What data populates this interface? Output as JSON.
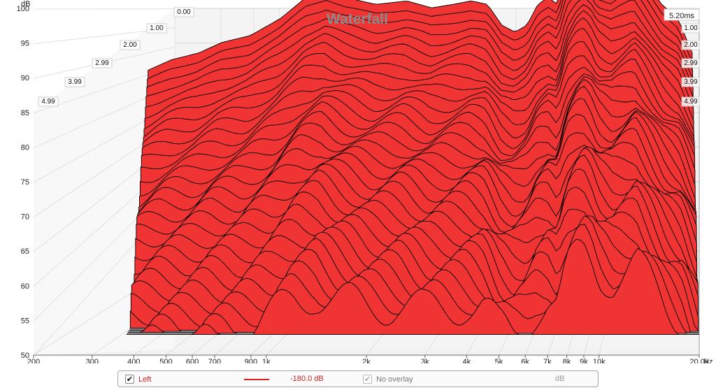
{
  "chart_data": {
    "type": "area",
    "title": "Waterfall",
    "ylabel": "dB",
    "xunit": "Hz",
    "ylim": [
      50,
      100
    ],
    "y_ticks": [
      50,
      55,
      60,
      65,
      70,
      75,
      80,
      85,
      90,
      95,
      100
    ],
    "x_ticks": [
      {
        "value": 200,
        "label": "200"
      },
      {
        "value": 300,
        "label": "300"
      },
      {
        "value": 400,
        "label": "400"
      },
      {
        "value": 500,
        "label": "500"
      },
      {
        "value": 600,
        "label": "600"
      },
      {
        "value": 700,
        "label": "700"
      },
      {
        "value": 900,
        "label": "900"
      },
      {
        "value": 1000,
        "label": "1k"
      },
      {
        "value": 2000,
        "label": "2k"
      },
      {
        "value": 3000,
        "label": "3k"
      },
      {
        "value": 4000,
        "label": "4k"
      },
      {
        "value": 5000,
        "label": "5k"
      },
      {
        "value": 6000,
        "label": "6k"
      },
      {
        "value": 7000,
        "label": "7k"
      },
      {
        "value": 8000,
        "label": "8k"
      },
      {
        "value": 9000,
        "label": "9k"
      },
      {
        "value": 10000,
        "label": "10k"
      },
      {
        "value": 20000,
        "label": "20.0k"
      }
    ],
    "xlim": [
      200,
      20000
    ],
    "time_axis": {
      "unit": "ms",
      "max": 5.2,
      "max_label": "5.20ms",
      "left_labels": [
        "0.00",
        "1.00",
        "2.00",
        "2.99",
        "3.99",
        "4.99"
      ],
      "right_labels": [
        "1.00",
        "2.00",
        "2.99",
        "3.99",
        "4.99"
      ]
    },
    "series": [
      {
        "name": "Left",
        "color": "#f03434",
        "outline": "#000000",
        "front_slice_dB": [
          [
            380,
            81.5
          ],
          [
            450,
            83
          ],
          [
            550,
            84
          ],
          [
            650,
            85.5
          ],
          [
            800,
            86.5
          ],
          [
            1000,
            89
          ],
          [
            1200,
            92
          ],
          [
            1400,
            93
          ],
          [
            1600,
            92
          ],
          [
            2000,
            91
          ],
          [
            2500,
            91.5
          ],
          [
            3000,
            90.5
          ],
          [
            3500,
            91
          ],
          [
            4000,
            91.5
          ],
          [
            4500,
            91
          ],
          [
            5000,
            88
          ],
          [
            5500,
            87
          ],
          [
            6000,
            88
          ],
          [
            6500,
            91
          ],
          [
            7000,
            92
          ],
          [
            7500,
            91
          ],
          [
            8000,
            96
          ],
          [
            8500,
            98
          ],
          [
            9000,
            99
          ],
          [
            9500,
            98
          ],
          [
            10000,
            96
          ],
          [
            11000,
            95
          ],
          [
            12000,
            96
          ],
          [
            13000,
            97
          ],
          [
            14000,
            95
          ],
          [
            16000,
            91
          ],
          [
            18000,
            89
          ],
          [
            20000,
            84
          ]
        ]
      }
    ],
    "legend": "bottom"
  },
  "legend": {
    "channel_label": "Left",
    "channel_checked": true,
    "channel_color": "#f03434",
    "level": "-180.0 dB",
    "overlay_label": "No overlay",
    "overlay_checked": true,
    "overlay_unit": "dB",
    "check_glyph": "✔"
  }
}
